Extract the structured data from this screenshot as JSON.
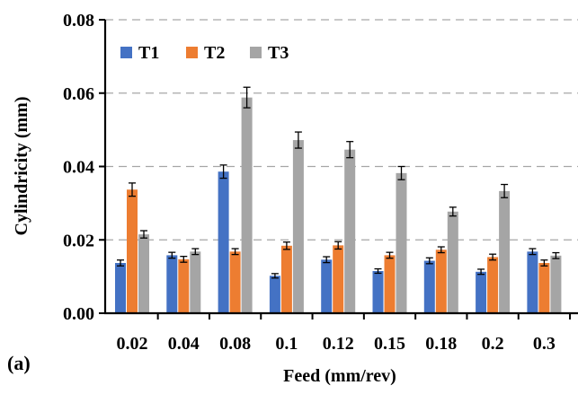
{
  "panel_label": "(a)",
  "chart_data": {
    "type": "bar",
    "title": "",
    "xlabel": "Feed (mm/rev)",
    "ylabel": "Cylindricity (mm)",
    "ylim": [
      0,
      0.08
    ],
    "yticks": [
      "0.00",
      "0.02",
      "0.04",
      "0.06",
      "0.08"
    ],
    "grid": "horizontal dashed",
    "legend_position": "top-left",
    "categories": [
      "0.02",
      "0.04",
      "0.08",
      "0.1",
      "0.12",
      "0.15",
      "0.18",
      "0.2",
      "0.3"
    ],
    "series": [
      {
        "name": "T1",
        "color": "#4472c4",
        "values": [
          0.0137,
          0.0158,
          0.0386,
          0.0102,
          0.0146,
          0.0115,
          0.0143,
          0.0113,
          0.0168
        ],
        "errors": [
          0.0008,
          0.0008,
          0.0018,
          0.0006,
          0.0008,
          0.0006,
          0.0008,
          0.0007,
          0.0008
        ]
      },
      {
        "name": "T2",
        "color": "#ed7d31",
        "values": [
          0.0337,
          0.0147,
          0.0168,
          0.0184,
          0.0185,
          0.0158,
          0.0173,
          0.0153,
          0.0137
        ],
        "errors": [
          0.0018,
          0.0008,
          0.0008,
          0.001,
          0.001,
          0.0008,
          0.0008,
          0.0008,
          0.0008
        ]
      },
      {
        "name": "T3",
        "color": "#a5a5a5",
        "values": [
          0.0215,
          0.0168,
          0.0588,
          0.0472,
          0.0446,
          0.0382,
          0.0277,
          0.0333,
          0.0157
        ],
        "errors": [
          0.001,
          0.0008,
          0.0028,
          0.0022,
          0.0022,
          0.0018,
          0.0012,
          0.0018,
          0.0008
        ]
      }
    ]
  }
}
